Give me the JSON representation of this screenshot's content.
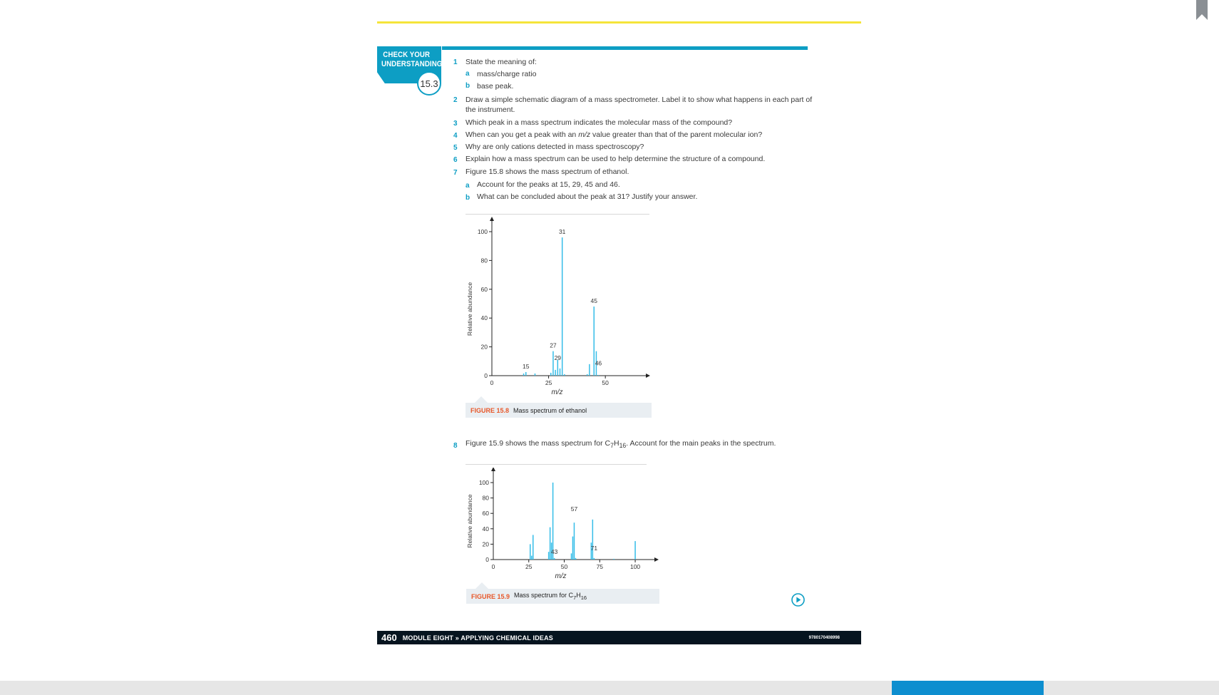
{
  "cyu": {
    "title_line1": "CHECK YOUR",
    "title_line2": "UNDERSTANDING",
    "number": "15.3"
  },
  "questions": {
    "q1": {
      "num": "1",
      "text": "State the meaning of:",
      "a": {
        "label": "a",
        "text": "mass/charge ratio"
      },
      "b": {
        "label": "b",
        "text": "base peak."
      }
    },
    "q2": {
      "num": "2",
      "line1": "Draw a simple schematic diagram of a mass spectrometer. Label it to show what happens in each part of",
      "line2": "the instrument."
    },
    "q3": {
      "num": "3",
      "text": "Which peak in a mass spectrum indicates the molecular mass of the compound?"
    },
    "q4": {
      "num": "4",
      "pre": "When can you get a peak with an ",
      "mz": "m/z",
      "post": " value greater than that of the parent molecular ion?"
    },
    "q5": {
      "num": "5",
      "text": "Why are only cations detected in mass spectroscopy?"
    },
    "q6": {
      "num": "6",
      "text": "Explain how a mass spectrum can be used to help determine the structure of a compound."
    },
    "q7": {
      "num": "7",
      "text": "Figure 15.8 shows the mass spectrum of ethanol.",
      "a": {
        "label": "a",
        "text": "Account for the peaks at 15, 29, 45 and 46."
      },
      "b": {
        "label": "b",
        "text": "What can be concluded about the peak at 31? Justify your answer."
      }
    },
    "q8": {
      "num": "8",
      "pre": "Figure 15.9 shows the mass spectrum for C",
      "sub1": "7",
      "mid": "H",
      "sub2": "16",
      "post": ". Account for the main peaks in the spectrum."
    }
  },
  "figures": {
    "fig1": {
      "label": "FIGURE 15.8",
      "caption": "Mass spectrum of ethanol"
    },
    "fig2": {
      "label": "FIGURE 15.9",
      "caption_pre": "Mass spectrum for C",
      "sub1": "7",
      "mid": "H",
      "sub2": "16"
    }
  },
  "chart_data": [
    {
      "type": "bar",
      "title": "",
      "xlabel": "m/z",
      "ylabel": "Relative abundance",
      "xlim": [
        0,
        60
      ],
      "ylim": [
        0,
        100
      ],
      "x_ticks": [
        0,
        25,
        50
      ],
      "y_ticks": [
        0,
        20,
        40,
        60,
        80,
        100
      ],
      "peaks": [
        {
          "x": 14,
          "y": 1.5
        },
        {
          "x": 15,
          "y": 2.5
        },
        {
          "x": 19,
          "y": 1.5
        },
        {
          "x": 26,
          "y": 2
        },
        {
          "x": 27,
          "y": 17
        },
        {
          "x": 28,
          "y": 4
        },
        {
          "x": 29,
          "y": 11
        },
        {
          "x": 30,
          "y": 5
        },
        {
          "x": 31,
          "y": 96
        },
        {
          "x": 32,
          "y": 1
        },
        {
          "x": 42,
          "y": 1
        },
        {
          "x": 43,
          "y": 8
        },
        {
          "x": 45,
          "y": 48
        },
        {
          "x": 46,
          "y": 17
        },
        {
          "x": 47,
          "y": 0.5
        }
      ],
      "peak_labels": [
        {
          "x": 15,
          "text": "15"
        },
        {
          "x": 27,
          "text": "27"
        },
        {
          "x": 29,
          "text": "29"
        },
        {
          "x": 31,
          "text": "31"
        },
        {
          "x": 45,
          "text": "45"
        },
        {
          "x": 46,
          "text": "46"
        }
      ]
    },
    {
      "type": "bar",
      "title": "",
      "xlabel": "m/z",
      "ylabel": "Relative abundance",
      "xlim": [
        0,
        107
      ],
      "ylim": [
        0,
        100
      ],
      "x_ticks": [
        0,
        25,
        50,
        75,
        100
      ],
      "y_ticks": [
        0,
        20,
        40,
        60,
        80,
        100
      ],
      "peaks": [
        {
          "x": 26,
          "y": 20
        },
        {
          "x": 27,
          "y": 5
        },
        {
          "x": 28,
          "y": 32
        },
        {
          "x": 39,
          "y": 10
        },
        {
          "x": 40,
          "y": 42
        },
        {
          "x": 41,
          "y": 22
        },
        {
          "x": 42,
          "y": 100
        },
        {
          "x": 43,
          "y": 2
        },
        {
          "x": 55,
          "y": 8
        },
        {
          "x": 56,
          "y": 30
        },
        {
          "x": 57,
          "y": 48
        },
        {
          "x": 58,
          "y": 2
        },
        {
          "x": 69,
          "y": 22
        },
        {
          "x": 70,
          "y": 52
        },
        {
          "x": 71,
          "y": 2
        },
        {
          "x": 85,
          "y": 1
        },
        {
          "x": 100,
          "y": 24
        }
      ],
      "peak_labels": [
        {
          "x": 43,
          "text": "43"
        },
        {
          "x": 57,
          "text": "57"
        },
        {
          "x": 71,
          "text": "71"
        }
      ]
    }
  ],
  "footer": {
    "page": "460",
    "module": "MODULE EIGHT » APPLYING CHEMICAL IDEAS",
    "isbn": "9780170408998"
  }
}
